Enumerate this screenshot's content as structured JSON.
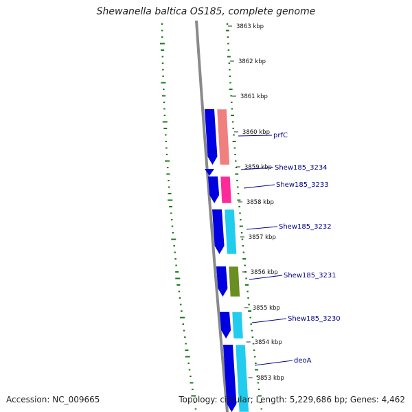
{
  "title": "Shewanella baltica OS185, complete genome",
  "footer": {
    "accession": "Accession: NC_009665",
    "topology": "Topology: circular; Length: 5,229,686 bp; Genes: 4,462"
  },
  "colors": {
    "backbone": "#8a8a8a",
    "gc_skew": "#1a7a1a",
    "cds_strand": "#0000e0",
    "label": "#00008b"
  },
  "ticks": [
    {
      "label": "3863 kbp"
    },
    {
      "label": "3862 kbp"
    },
    {
      "label": "3861 kbp"
    },
    {
      "label": "3860 kbp"
    },
    {
      "label": "3859 kbp"
    },
    {
      "label": "3858 kbp"
    },
    {
      "label": "3857 kbp"
    },
    {
      "label": "3856 kbp"
    },
    {
      "label": "3855 kbp"
    },
    {
      "label": "3854 kbp"
    },
    {
      "label": "3853 kbp"
    }
  ],
  "genes": [
    {
      "name": "prfC",
      "color": "#f08080"
    },
    {
      "name": "Shew185_3234",
      "color": "#ffffff"
    },
    {
      "name": "Shew185_3233",
      "color": "#ff2a9a"
    },
    {
      "name": "Shew185_3232",
      "color": "#22ccee"
    },
    {
      "name": "Shew185_3231",
      "color": "#6b8e23"
    },
    {
      "name": "Shew185_3230",
      "color": "#22ccee"
    },
    {
      "name": "deoA",
      "color": "#22ccee"
    }
  ]
}
